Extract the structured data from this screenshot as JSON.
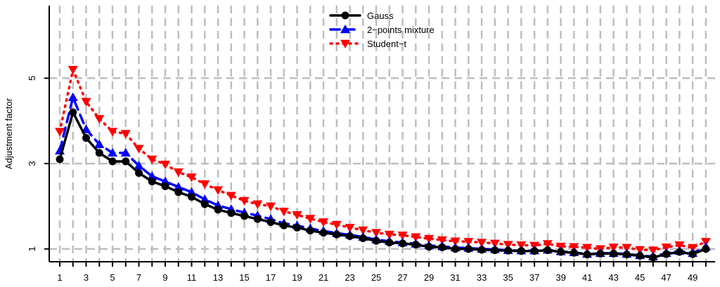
{
  "chart_data": {
    "type": "line",
    "xlabel": "",
    "ylabel": "Adjustment factor",
    "xlim": [
      0.2,
      50.7
    ],
    "ylim": [
      0.7,
      6.7
    ],
    "x_ticks": [
      1,
      3,
      5,
      7,
      9,
      11,
      13,
      15,
      17,
      19,
      21,
      23,
      25,
      27,
      29,
      31,
      33,
      35,
      37,
      39,
      41,
      43,
      45,
      47,
      49
    ],
    "y_ticks": [
      1,
      3,
      5
    ],
    "grid": true,
    "legend_position": "top-center",
    "x": [
      1,
      2,
      3,
      4,
      5,
      6,
      7,
      8,
      9,
      10,
      11,
      12,
      13,
      14,
      15,
      16,
      17,
      18,
      19,
      20,
      21,
      22,
      23,
      25,
      24,
      26,
      27,
      28,
      29,
      30,
      31,
      32,
      33,
      34,
      35,
      36,
      37,
      38,
      39,
      40,
      41,
      42,
      43,
      44,
      45,
      46,
      47,
      48,
      49,
      50
    ],
    "series": [
      {
        "name": "Gauss",
        "color": "#000000",
        "marker": "circle",
        "line": "solid",
        "values": [
          3.1,
          4.2,
          3.6,
          3.25,
          3.05,
          3.05,
          2.78,
          2.58,
          2.47,
          2.33,
          2.22,
          2.05,
          1.92,
          1.84,
          1.77,
          1.7,
          1.63,
          1.55,
          1.5,
          1.43,
          1.38,
          1.34,
          1.3,
          1.25,
          1.19,
          1.15,
          1.13,
          1.1,
          1.05,
          1.04,
          1.0,
          1.0,
          0.98,
          0.97,
          0.96,
          0.95,
          0.95,
          0.97,
          0.93,
          0.91,
          0.87,
          0.89,
          0.89,
          0.87,
          0.84,
          0.8,
          0.88,
          0.93,
          0.88,
          1.0
        ]
      },
      {
        "name": "2−points mixture",
        "color": "#0000ff",
        "marker": "triangle-up",
        "line": "dashed",
        "values": [
          3.3,
          4.55,
          3.8,
          3.45,
          3.25,
          3.25,
          2.95,
          2.7,
          2.58,
          2.45,
          2.33,
          2.16,
          2.02,
          1.93,
          1.85,
          1.78,
          1.7,
          1.6,
          1.55,
          1.48,
          1.42,
          1.37,
          1.33,
          1.28,
          1.22,
          1.18,
          1.15,
          1.12,
          1.08,
          1.06,
          1.03,
          1.02,
          1.0,
          0.99,
          0.97,
          0.96,
          0.96,
          0.98,
          0.94,
          0.92,
          0.88,
          0.9,
          0.9,
          0.88,
          0.85,
          0.82,
          0.9,
          0.95,
          0.9,
          1.05
        ]
      },
      {
        "name": "Student−t",
        "color": "#ff0000",
        "marker": "triangle-down",
        "line": "dotted",
        "values": [
          3.75,
          5.2,
          4.45,
          4.05,
          3.75,
          3.7,
          3.35,
          3.1,
          2.98,
          2.8,
          2.68,
          2.52,
          2.38,
          2.25,
          2.13,
          2.05,
          2.0,
          1.88,
          1.8,
          1.71,
          1.63,
          1.57,
          1.5,
          1.44,
          1.38,
          1.34,
          1.32,
          1.28,
          1.24,
          1.21,
          1.18,
          1.17,
          1.15,
          1.13,
          1.1,
          1.09,
          1.08,
          1.12,
          1.06,
          1.05,
          1.03,
          1.0,
          1.04,
          1.03,
          0.98,
          0.97,
          1.04,
          1.09,
          1.03,
          1.17
        ]
      }
    ]
  }
}
